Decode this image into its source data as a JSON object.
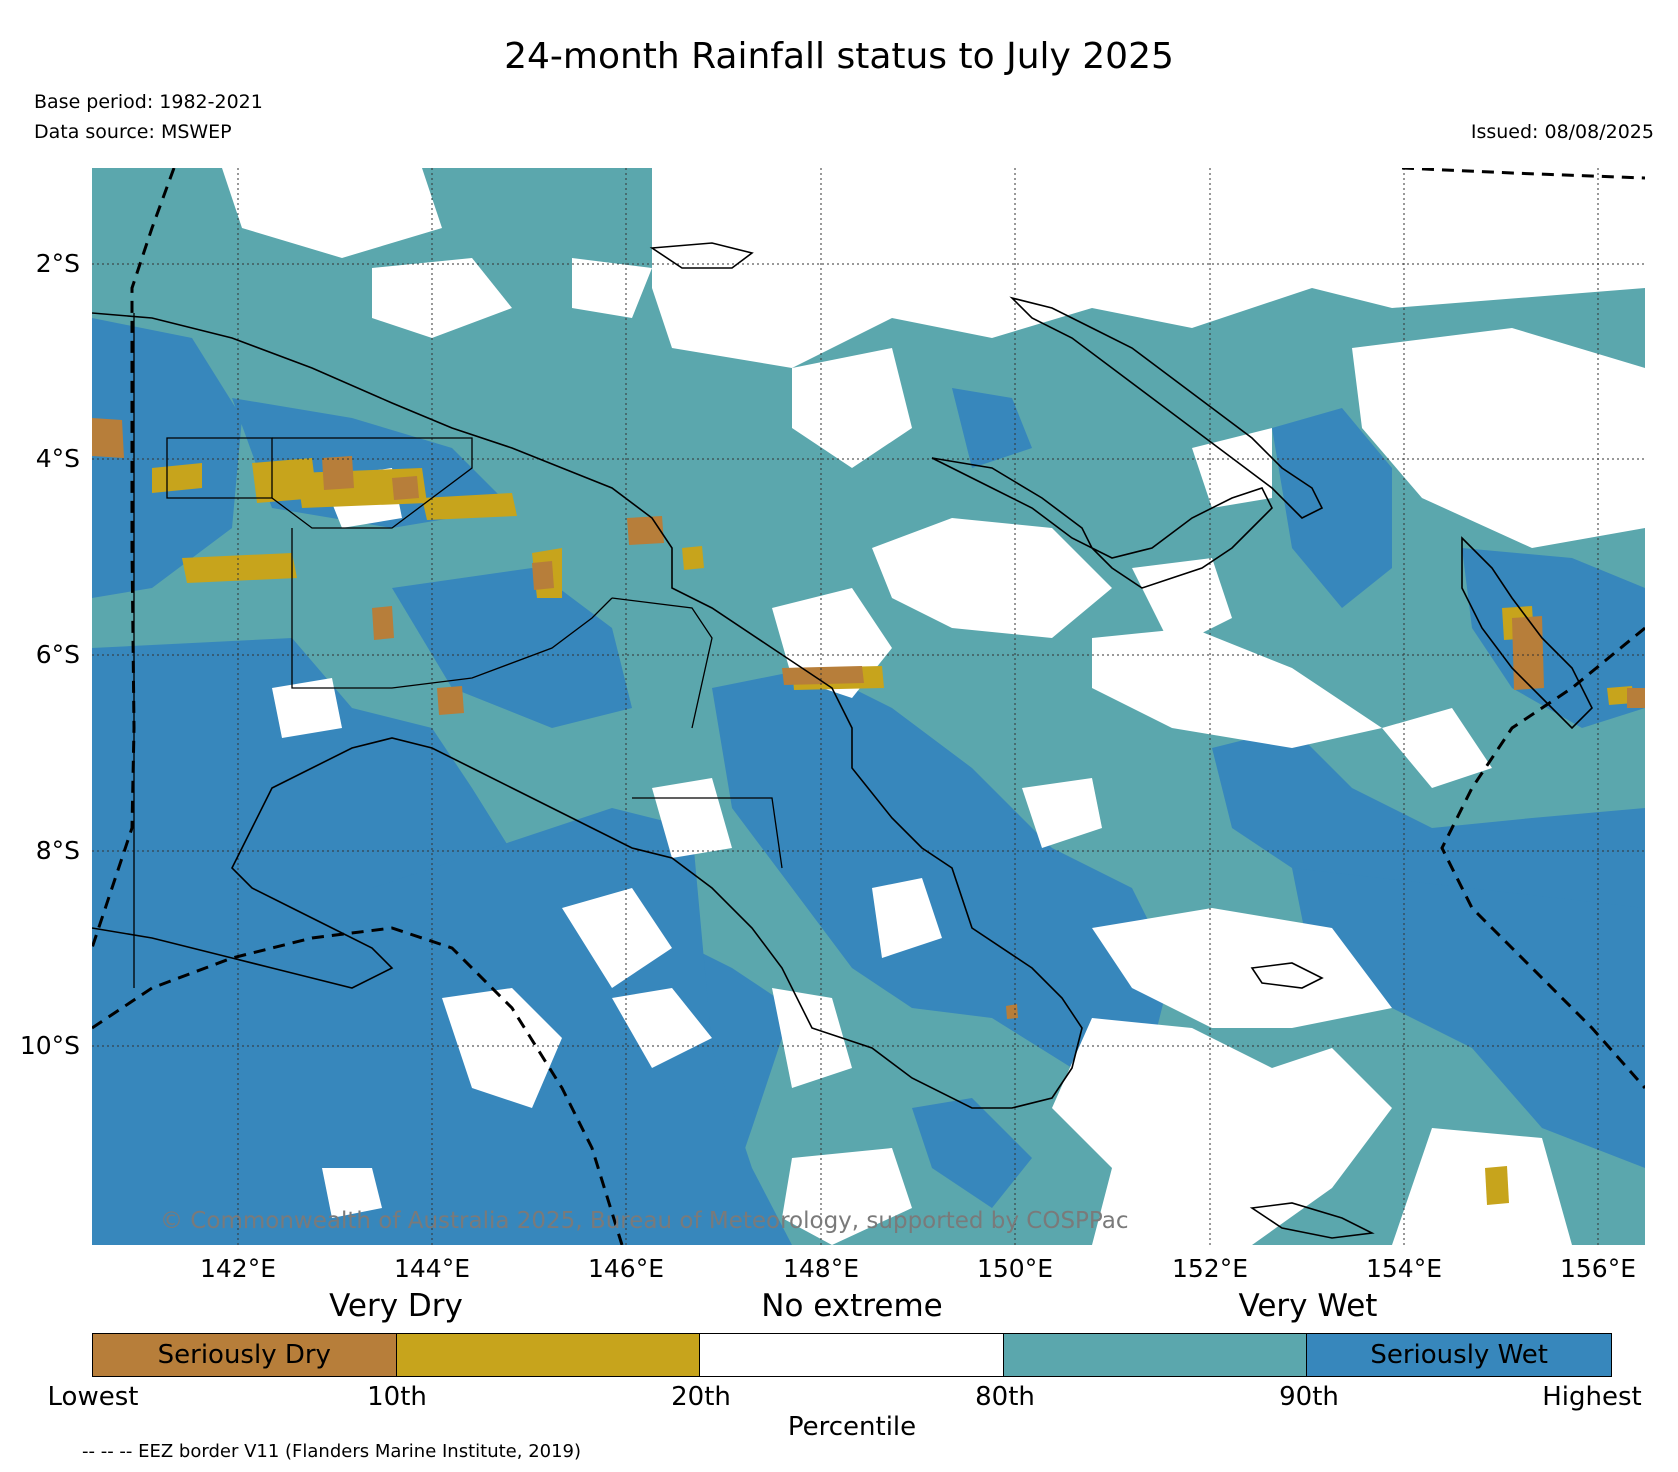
{
  "title": "24-month Rainfall status to July 2025",
  "base_period": "Base period: 1982-2021",
  "data_source": "Data source: MSWEP",
  "issued": "Issued: 08/08/2025",
  "copyright": "© Commonwealth of Australia 2025, Bureau of Meteorology, supported by COSPPac",
  "eez_note": "-- -- -- EEZ border V11 (Flanders Marine Institute, 2019)",
  "lat_ticks": [
    "2°S",
    "4°S",
    "6°S",
    "8°S",
    "10°S"
  ],
  "lon_ticks": [
    "142°E",
    "144°E",
    "146°E",
    "148°E",
    "150°E",
    "152°E",
    "154°E",
    "156°E"
  ],
  "legend": {
    "categories": [
      "Very Dry",
      "No extreme",
      "Very Wet"
    ],
    "segments": [
      {
        "label": "Seriously Dry",
        "color": "#b77e3a"
      },
      {
        "label": "",
        "color": "#c7a41c"
      },
      {
        "label": "",
        "color": "#ffffff"
      },
      {
        "label": "",
        "color": "#5ba7ad"
      },
      {
        "label": "Seriously Wet",
        "color": "#3787bc"
      }
    ],
    "percentile_ticks": [
      "Lowest",
      "10th",
      "20th",
      "80th",
      "90th",
      "Highest"
    ],
    "axis_label": "Percentile"
  },
  "colors": {
    "seriously_dry": "#b77e3a",
    "very_dry": "#c7a41c",
    "no_extreme": "#ffffff",
    "very_wet": "#5ba7ad",
    "seriously_wet": "#3787bc"
  }
}
